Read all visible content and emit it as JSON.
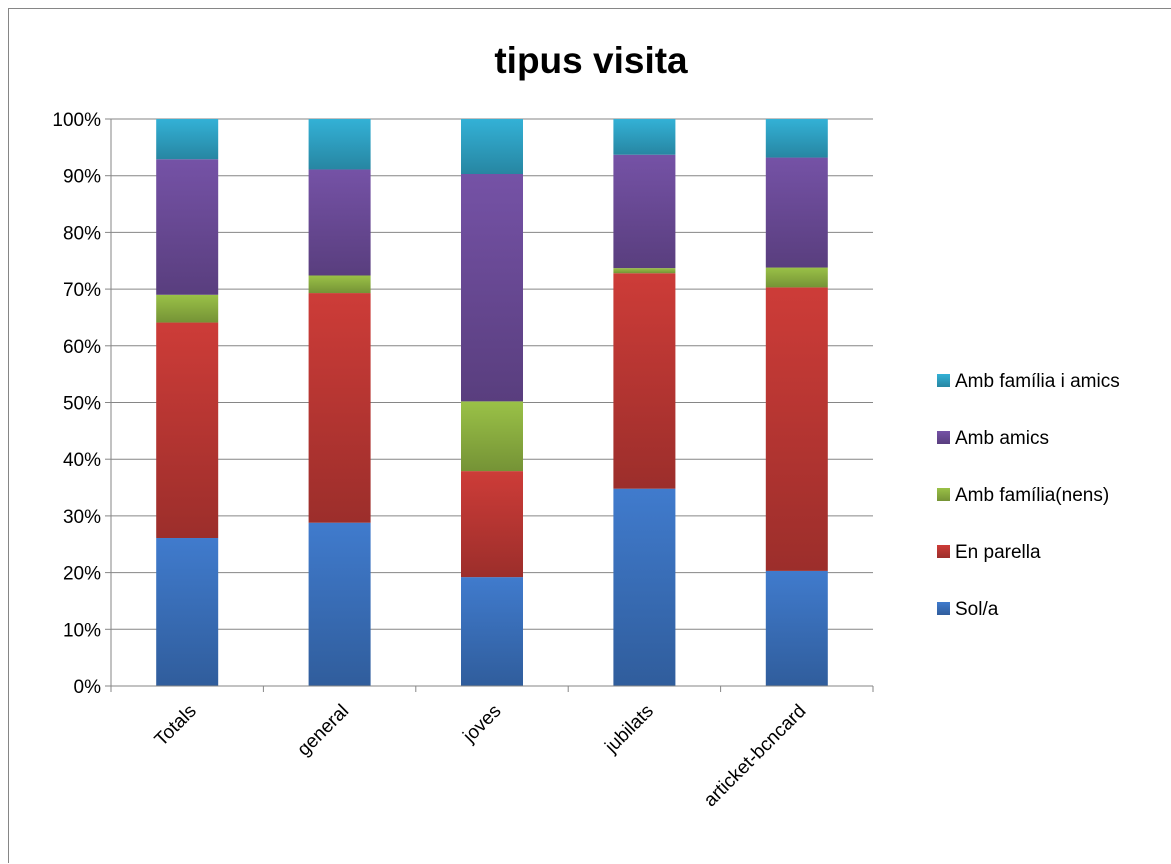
{
  "chart_data": {
    "type": "bar",
    "stacked": true,
    "percent_stacked": true,
    "title": "tipus visita",
    "categories": [
      "Totals",
      "general",
      "joves",
      "jubilats",
      "articket-bcncard"
    ],
    "ylim": [
      0,
      100
    ],
    "yticks": [
      "0%",
      "10%",
      "20%",
      "30%",
      "40%",
      "50%",
      "60%",
      "70%",
      "80%",
      "90%",
      "100%"
    ],
    "grid": true,
    "legend_position": "right",
    "series": [
      {
        "name": "Sol/a",
        "color": "#3B72BE",
        "values": [
          26.1,
          28.8,
          19.2,
          34.8,
          20.3
        ]
      },
      {
        "name": "En parella",
        "color": "#BE3834",
        "values": [
          38.0,
          40.5,
          18.7,
          38.0,
          50.0
        ]
      },
      {
        "name": "Amb família(nens)",
        "color": "#8FB342",
        "values": [
          4.9,
          3.1,
          12.3,
          0.9,
          3.5
        ]
      },
      {
        "name": "Amb amics",
        "color": "#6C4C9A",
        "values": [
          23.9,
          18.7,
          40.1,
          20.0,
          19.4
        ]
      },
      {
        "name": "Amb família i amics",
        "color": "#2FA4C6",
        "values": [
          7.1,
          8.9,
          9.7,
          6.3,
          6.8
        ]
      }
    ]
  }
}
